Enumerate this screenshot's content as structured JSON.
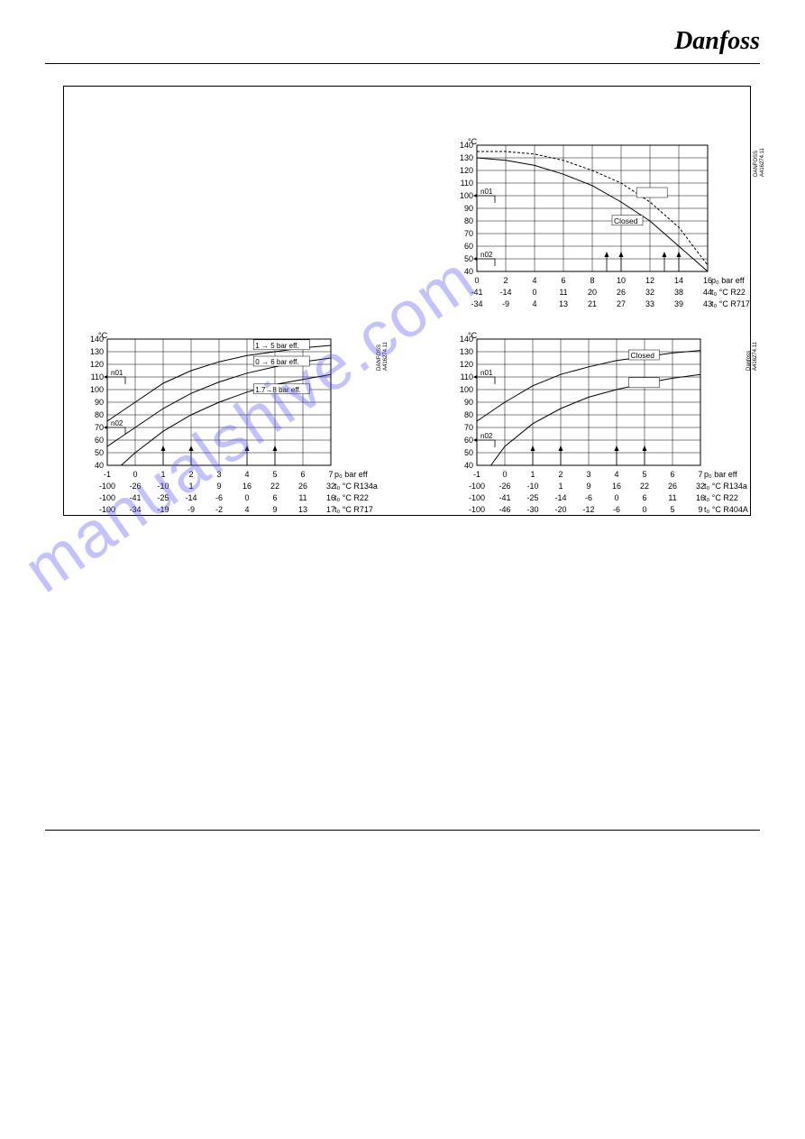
{
  "logo_text": "Danfoss",
  "watermark_text": "manualshive.com",
  "chart_top_right": {
    "y_unit": "°C",
    "y_min": 40,
    "y_max": 140,
    "y_step": 10,
    "x_min": 0,
    "x_max": 16,
    "x_step": 2,
    "x_unit": "p₀ bar eff",
    "ref_id": "A416274.11",
    "brand_id": "DANFOSS",
    "markers": {
      "n01": 100,
      "n02": 50
    },
    "annot_open": "Open",
    "annot_closed": "Closed",
    "grid_color": "#000000",
    "line_solid": "#000000",
    "line_dash": "#999999",
    "curves": [
      {
        "style": "dash",
        "pts": [
          [
            0,
            135
          ],
          [
            2,
            135
          ],
          [
            4,
            133
          ],
          [
            6,
            128
          ],
          [
            8,
            120
          ],
          [
            10,
            110
          ],
          [
            12,
            95
          ],
          [
            14,
            75
          ],
          [
            16,
            45
          ]
        ]
      },
      {
        "style": "solid",
        "pts": [
          [
            0,
            130
          ],
          [
            2,
            128
          ],
          [
            4,
            124
          ],
          [
            6,
            117
          ],
          [
            8,
            108
          ],
          [
            10,
            95
          ],
          [
            12,
            80
          ],
          [
            14,
            60
          ],
          [
            16,
            40
          ]
        ]
      }
    ],
    "xrows": [
      {
        "values": [
          0,
          2,
          4,
          6,
          8,
          10,
          12,
          14,
          16
        ],
        "suffix": "p₀ bar eff"
      },
      {
        "values": [
          -41,
          -14,
          0,
          11,
          20,
          26,
          32,
          38,
          44
        ],
        "suffix": "t₀ °C R22"
      },
      {
        "values": [
          -34,
          -9,
          4,
          13,
          21,
          27,
          33,
          39,
          43
        ],
        "suffix": "t₀ °C R717"
      }
    ]
  },
  "chart_bottom_left": {
    "y_unit": "°C",
    "y_min": 40,
    "y_max": 140,
    "y_step": 10,
    "x_min": -1,
    "x_max": 7,
    "x_step": 1,
    "x_unit": "p₀ bar eff",
    "ref_id": "A416274.11",
    "brand_id": "DANFOSS",
    "markers": {
      "n01": 110,
      "n02": 70
    },
    "labels": {
      "a": "1 → 5 bar eff.",
      "b": "0 → 6 bar eff.",
      "c": "1.7→8 bar eff."
    },
    "grid_color": "#000000",
    "curves": [
      {
        "style": "solid",
        "pts": [
          [
            -1,
            75
          ],
          [
            0,
            90
          ],
          [
            1,
            105
          ],
          [
            2,
            115
          ],
          [
            3,
            122
          ],
          [
            4,
            127
          ],
          [
            5,
            130
          ],
          [
            6,
            133
          ],
          [
            7,
            135
          ]
        ]
      },
      {
        "style": "solid",
        "pts": [
          [
            -1,
            55
          ],
          [
            0,
            70
          ],
          [
            1,
            85
          ],
          [
            2,
            97
          ],
          [
            3,
            106
          ],
          [
            4,
            113
          ],
          [
            5,
            118
          ],
          [
            6,
            122
          ],
          [
            7,
            125
          ]
        ]
      },
      {
        "style": "solid",
        "pts": [
          [
            -0.5,
            40
          ],
          [
            0,
            50
          ],
          [
            1,
            67
          ],
          [
            2,
            80
          ],
          [
            3,
            90
          ],
          [
            4,
            98
          ],
          [
            5,
            104
          ],
          [
            6,
            108
          ],
          [
            7,
            112
          ]
        ]
      }
    ],
    "xrows": [
      {
        "values": [
          -1,
          0,
          1,
          2,
          3,
          4,
          5,
          6,
          7
        ],
        "suffix": "p₀ bar eff"
      },
      {
        "values": [
          -100,
          -26,
          -10,
          1,
          9,
          16,
          22,
          26,
          32
        ],
        "suffix": "t₀ °C R134a"
      },
      {
        "values": [
          -100,
          -41,
          -25,
          -14,
          -6,
          0,
          6,
          11,
          16
        ],
        "suffix": "t₀ °C R22"
      },
      {
        "values": [
          -100,
          -34,
          -19,
          -9,
          -2,
          4,
          9,
          13,
          17
        ],
        "suffix": "t₀ °C R717"
      }
    ]
  },
  "chart_bottom_right": {
    "y_unit": "°C",
    "y_min": 40,
    "y_max": 140,
    "y_step": 10,
    "x_min": -1,
    "x_max": 7,
    "x_step": 1,
    "x_unit": "p₀ bar eff",
    "ref_id": "A416274.11",
    "brand_id": "Danfoss",
    "markers": {
      "n01": 110,
      "n02": 60
    },
    "annot_open": "Open",
    "annot_closed": "Closed",
    "grid_color": "#000000",
    "curves": [
      {
        "style": "solid",
        "pts": [
          [
            -1,
            75
          ],
          [
            0,
            90
          ],
          [
            1,
            103
          ],
          [
            2,
            112
          ],
          [
            3,
            118
          ],
          [
            4,
            123
          ],
          [
            5,
            126
          ],
          [
            6,
            129
          ],
          [
            7,
            131
          ]
        ]
      },
      {
        "style": "solid",
        "pts": [
          [
            -0.5,
            40
          ],
          [
            0,
            55
          ],
          [
            1,
            73
          ],
          [
            2,
            85
          ],
          [
            3,
            94
          ],
          [
            4,
            100
          ],
          [
            5,
            105
          ],
          [
            6,
            109
          ],
          [
            7,
            112
          ]
        ]
      }
    ],
    "xrows": [
      {
        "values": [
          -1,
          0,
          1,
          2,
          3,
          4,
          5,
          6,
          7
        ],
        "suffix": "p₀ bar eff"
      },
      {
        "values": [
          -100,
          -26,
          -10,
          1,
          9,
          16,
          22,
          26,
          32
        ],
        "suffix": "t₀ °C R134a"
      },
      {
        "values": [
          -100,
          -41,
          -25,
          -14,
          -6,
          0,
          6,
          11,
          16
        ],
        "suffix": "t₀ °C R22"
      },
      {
        "values": [
          -100,
          -46,
          -30,
          -20,
          -12,
          -6,
          0,
          5,
          9
        ],
        "suffix": "t₀ °C R404A"
      }
    ]
  }
}
